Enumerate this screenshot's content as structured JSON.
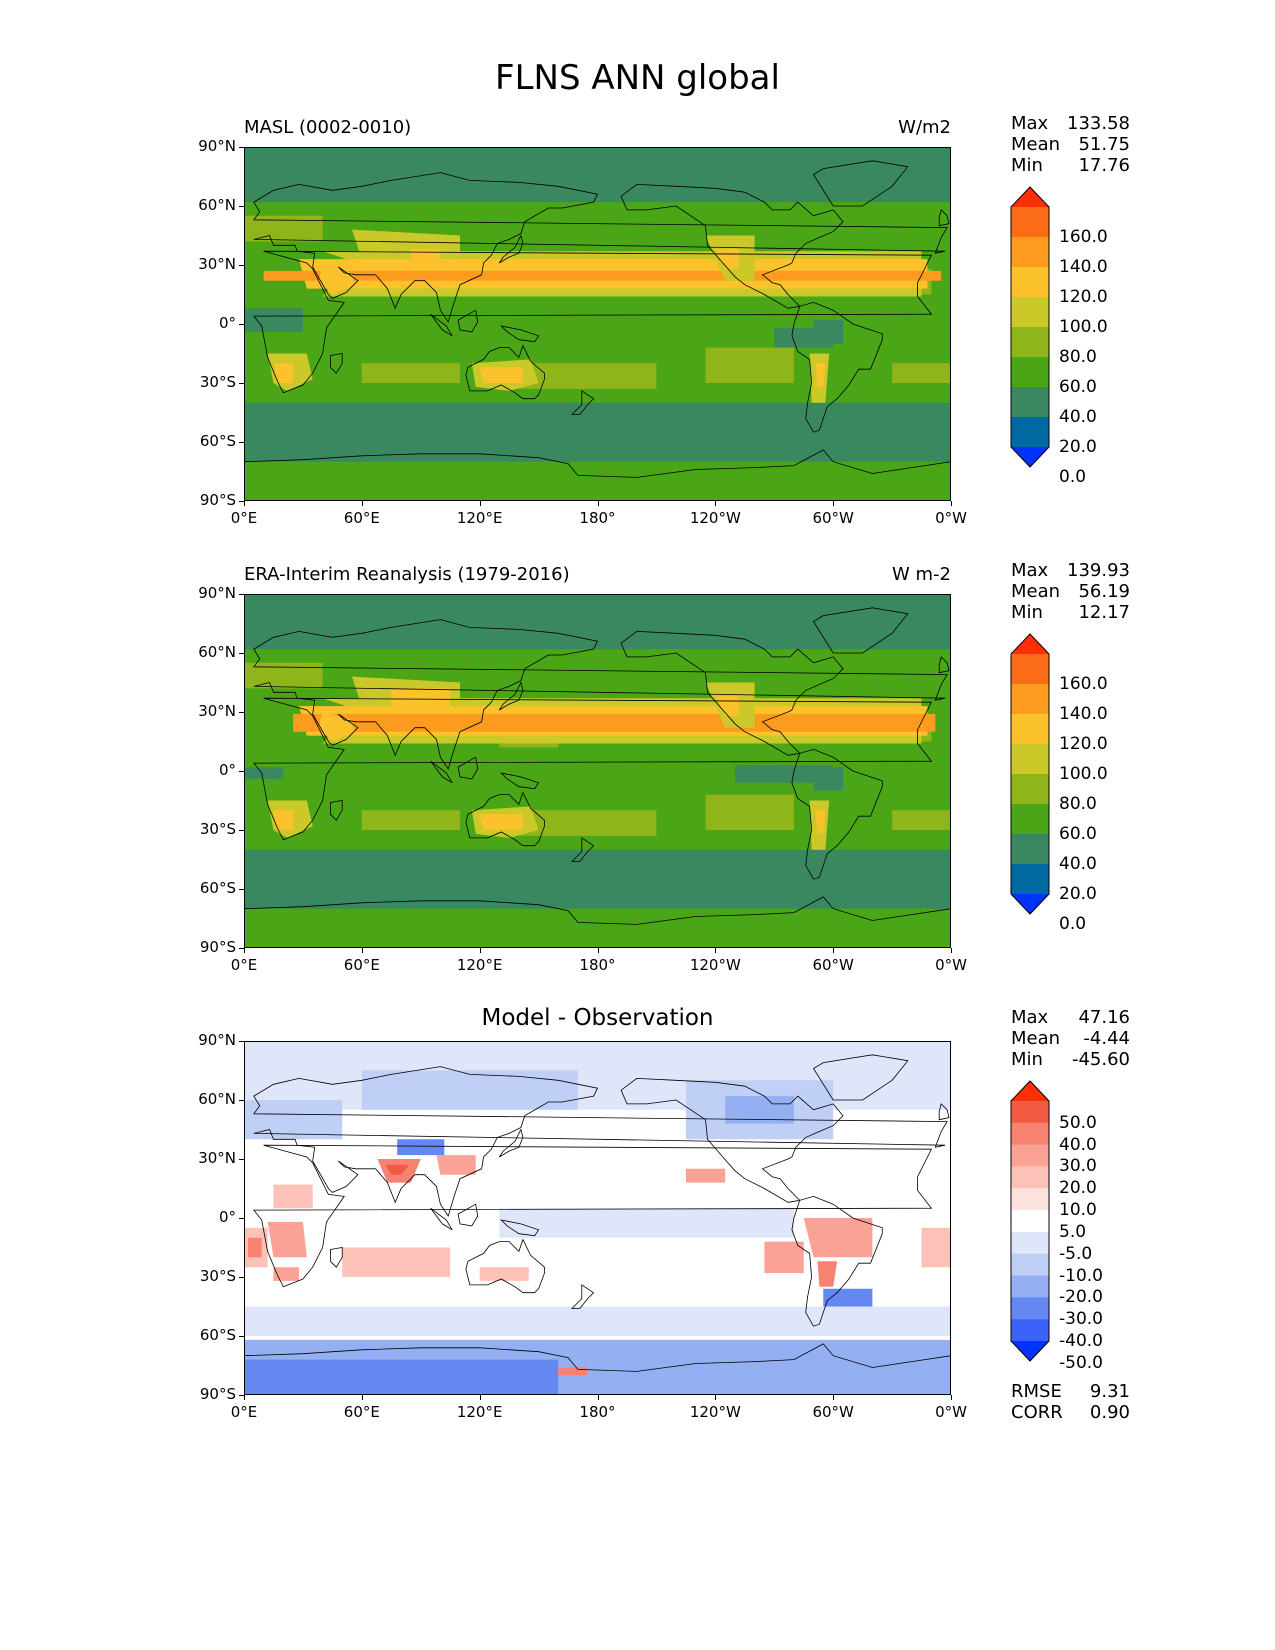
{
  "figure": {
    "title": "FLNS ANN global"
  },
  "colors": {
    "levels_abs": [
      "#0033ff",
      "#00699f",
      "#3a8860",
      "#4aa616",
      "#8fb51b",
      "#cbc82a",
      "#fcc22b",
      "#fc9b1e",
      "#fc6c16",
      "#ff2f08"
    ],
    "levels_diff": [
      "#0033ff",
      "#3b63fa",
      "#6487f2",
      "#94aff2",
      "#c0cff6",
      "#dfe6fa",
      "#ffffff",
      "#fde3de",
      "#fdc2b7",
      "#f9a295",
      "#f78272",
      "#f35a43",
      "#ff2f08"
    ],
    "land_outline": "#000000"
  },
  "panels": [
    {
      "id": "test",
      "left_title": "MASL (0002-0010)",
      "right_title": "W/m2",
      "center_title": "",
      "stats": [
        {
          "label": "Max",
          "value": "133.58"
        },
        {
          "label": "Mean",
          "value": "51.75"
        },
        {
          "label": "Min",
          "value": "17.76"
        }
      ],
      "colorbar_ticks": [
        "160.0",
        "140.0",
        "120.0",
        "100.0",
        "80.0",
        "60.0",
        "40.0",
        "20.0",
        "0.0"
      ],
      "extra_stats": []
    },
    {
      "id": "ref",
      "left_title": "ERA-Interim Reanalysis (1979-2016)",
      "right_title": "W m-2",
      "center_title": "",
      "stats": [
        {
          "label": "Max",
          "value": "139.93"
        },
        {
          "label": "Mean",
          "value": "56.19"
        },
        {
          "label": "Min",
          "value": "12.17"
        }
      ],
      "colorbar_ticks": [
        "160.0",
        "140.0",
        "120.0",
        "100.0",
        "80.0",
        "60.0",
        "40.0",
        "20.0",
        "0.0"
      ],
      "extra_stats": []
    },
    {
      "id": "diff",
      "left_title": "",
      "right_title": "",
      "center_title": "Model - Observation",
      "stats": [
        {
          "label": "Max",
          "value": "47.16"
        },
        {
          "label": "Mean",
          "value": "-4.44"
        },
        {
          "label": "Min",
          "value": "-45.60"
        }
      ],
      "colorbar_ticks": [
        "50.0",
        "40.0",
        "30.0",
        "20.0",
        "10.0",
        "5.0",
        "-5.0",
        "-10.0",
        "-20.0",
        "-30.0",
        "-40.0",
        "-50.0"
      ],
      "extra_stats": [
        {
          "label": "RMSE",
          "value": "9.31"
        },
        {
          "label": "CORR",
          "value": "0.90"
        }
      ]
    }
  ],
  "axes": {
    "lat_ticks": [
      "90°N",
      "60°N",
      "30°N",
      "0°",
      "30°S",
      "60°S",
      "90°S"
    ],
    "lon_ticks": [
      "0°E",
      "60°E",
      "120°E",
      "180°",
      "120°W",
      "60°W",
      "0°W"
    ]
  },
  "chart_data": [
    {
      "type": "heatmap",
      "title": "MASL (0002-0010)",
      "units": "W/m2",
      "x_ticks": [
        "0°E",
        "60°E",
        "120°E",
        "180°",
        "120°W",
        "60°W",
        "0°W"
      ],
      "y_ticks": [
        "90°N",
        "60°N",
        "30°N",
        "0°",
        "30°S",
        "60°S",
        "90°S"
      ],
      "levels": [
        0,
        20,
        40,
        60,
        80,
        100,
        120,
        140,
        160
      ],
      "stats": {
        "max": 133.58,
        "mean": 51.75,
        "min": 17.76
      }
    },
    {
      "type": "heatmap",
      "title": "ERA-Interim Reanalysis (1979-2016)",
      "units": "W m-2",
      "x_ticks": [
        "0°E",
        "60°E",
        "120°E",
        "180°",
        "120°W",
        "60°W",
        "0°W"
      ],
      "y_ticks": [
        "90°N",
        "60°N",
        "30°N",
        "0°",
        "30°S",
        "60°S",
        "90°S"
      ],
      "levels": [
        0,
        20,
        40,
        60,
        80,
        100,
        120,
        140,
        160
      ],
      "stats": {
        "max": 139.93,
        "mean": 56.19,
        "min": 12.17
      }
    },
    {
      "type": "heatmap",
      "title": "Model - Observation",
      "x_ticks": [
        "0°E",
        "60°E",
        "120°E",
        "180°",
        "120°W",
        "60°W",
        "0°W"
      ],
      "y_ticks": [
        "90°N",
        "60°N",
        "30°N",
        "0°",
        "30°S",
        "60°S",
        "90°S"
      ],
      "levels": [
        -50,
        -40,
        -30,
        -20,
        -10,
        -5,
        5,
        10,
        20,
        30,
        40,
        50
      ],
      "stats": {
        "max": 47.16,
        "mean": -4.44,
        "min": -45.6,
        "rmse": 9.31,
        "corr": 0.9
      }
    }
  ]
}
